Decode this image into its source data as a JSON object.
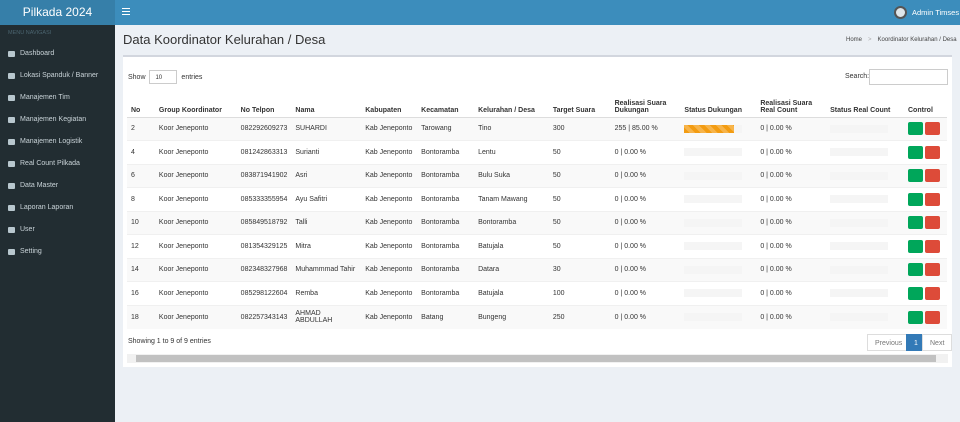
{
  "header": {
    "brand": "Pilkada 2024",
    "user": "Admin Timses"
  },
  "sidebar": {
    "heading": "MENU NAVIGASI",
    "items": [
      "Dashboard",
      "Lokasi Spanduk / Banner",
      "Manajemen Tim",
      "Manajemen Kegiatan",
      "Manajemen Logistik",
      "Real Count Pilkada",
      "Data Master",
      "Laporan Laporan",
      "User",
      "Setting"
    ]
  },
  "page": {
    "title": "Data Koordinator Kelurahan / Desa",
    "breadcrumb": [
      "Home",
      "Koordinator Kelurahan / Desa"
    ]
  },
  "table": {
    "show_label": "Show",
    "page_size": "10",
    "entries_label": "entries",
    "search_label": "Search:",
    "columns": [
      "No",
      "Group Koordinator",
      "No Telpon",
      "Nama",
      "Kabupaten",
      "Kecamatan",
      "Kelurahan / Desa",
      "Target Suara",
      "Realisasi Suara Dukungan",
      "Status Dukungan",
      "Realisasi Suara Real Count",
      "Status Real Count",
      "Control"
    ],
    "rows": [
      {
        "no": 2,
        "group": "Koor Jeneponto",
        "telpon": "082292609273",
        "nama": "SUHARDI",
        "kabupaten": "Kab Jeneponto",
        "kecamatan": "Tarowang",
        "kelurahan": "Tino",
        "target": 300,
        "realisasi": "255 | 85.00 %",
        "status_dukungan": 85,
        "real_count": "0 | 0.00 %",
        "status_real_count": 0
      },
      {
        "no": 4,
        "group": "Koor Jeneponto",
        "telpon": "081242863313",
        "nama": "Surianti",
        "kabupaten": "Kab Jeneponto",
        "kecamatan": "Bontoramba",
        "kelurahan": "Lentu",
        "target": 50,
        "realisasi": "0 | 0.00 %",
        "status_dukungan": 0,
        "real_count": "0 | 0.00 %",
        "status_real_count": 0
      },
      {
        "no": 6,
        "group": "Koor Jeneponto",
        "telpon": "083871941902",
        "nama": "Asri",
        "kabupaten": "Kab Jeneponto",
        "kecamatan": "Bontoramba",
        "kelurahan": "Bulu Suka",
        "target": 50,
        "realisasi": "0 | 0.00 %",
        "status_dukungan": 0,
        "real_count": "0 | 0.00 %",
        "status_real_count": 0
      },
      {
        "no": 8,
        "group": "Koor Jeneponto",
        "telpon": "085333355954",
        "nama": "Ayu Safitri",
        "kabupaten": "Kab Jeneponto",
        "kecamatan": "Bontoramba",
        "kelurahan": "Tanam Mawang",
        "target": 50,
        "realisasi": "0 | 0.00 %",
        "status_dukungan": 0,
        "real_count": "0 | 0.00 %",
        "status_real_count": 0
      },
      {
        "no": 10,
        "group": "Koor Jeneponto",
        "telpon": "085849518792",
        "nama": "Talli",
        "kabupaten": "Kab Jeneponto",
        "kecamatan": "Bontoramba",
        "kelurahan": "Bontoramba",
        "target": 50,
        "realisasi": "0 | 0.00 %",
        "status_dukungan": 0,
        "real_count": "0 | 0.00 %",
        "status_real_count": 0
      },
      {
        "no": 12,
        "group": "Koor Jeneponto",
        "telpon": "081354329125",
        "nama": "Mitra",
        "kabupaten": "Kab Jeneponto",
        "kecamatan": "Bontoramba",
        "kelurahan": "Batujala",
        "target": 50,
        "realisasi": "0 | 0.00 %",
        "status_dukungan": 0,
        "real_count": "0 | 0.00 %",
        "status_real_count": 0
      },
      {
        "no": 14,
        "group": "Koor Jeneponto",
        "telpon": "082348327968",
        "nama": "Muhammmad Tahir",
        "kabupaten": "Kab Jeneponto",
        "kecamatan": "Bontoramba",
        "kelurahan": "Datara",
        "target": 30,
        "realisasi": "0 | 0.00 %",
        "status_dukungan": 0,
        "real_count": "0 | 0.00 %",
        "status_real_count": 0
      },
      {
        "no": 16,
        "group": "Koor Jeneponto",
        "telpon": "085298122604",
        "nama": "Remba",
        "kabupaten": "Kab Jeneponto",
        "kecamatan": "Bontoramba",
        "kelurahan": "Batujala",
        "target": 100,
        "realisasi": "0 | 0.00 %",
        "status_dukungan": 0,
        "real_count": "0 | 0.00 %",
        "status_real_count": 0
      },
      {
        "no": 18,
        "group": "Koor Jeneponto",
        "telpon": "082257343143",
        "nama": "AHMAD ABDULLAH",
        "kabupaten": "Kab Jeneponto",
        "kecamatan": "Batang",
        "kelurahan": "Bungeng",
        "target": 250,
        "realisasi": "0 | 0.00 %",
        "status_dukungan": 0,
        "real_count": "0 | 0.00 %",
        "status_real_count": 0
      }
    ],
    "info": "Showing 1 to 9 of 9 entries",
    "pagination": [
      "Previous",
      "1",
      "Next"
    ]
  }
}
